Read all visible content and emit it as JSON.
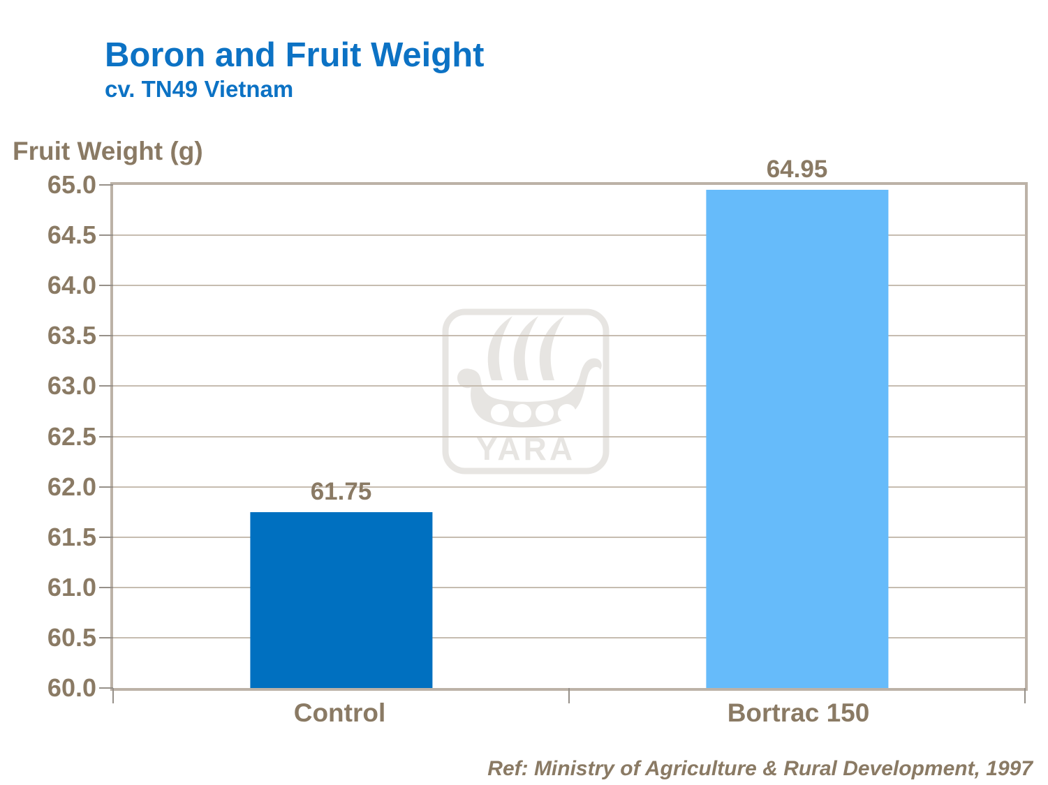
{
  "header": {
    "title": "Boron and Fruit Weight",
    "subtitle": "cv. TN49 Vietnam"
  },
  "axis": {
    "ylabel": "Fruit Weight (g)"
  },
  "footer": {
    "reference": "Ref: Ministry of Agriculture & Rural Development, 1997"
  },
  "watermark": {
    "text": "YARA",
    "icon": "yara-viking-ship-logo"
  },
  "colors": {
    "title_blue": "#0C72C4",
    "text_brown": "#8A7A64",
    "plot_border_tan": "#BCB2A7",
    "gridline_tan": "#C6BCB0",
    "tick_gray": "#969089",
    "bar_control_blue": "#0070C0",
    "bar_bortrac_blue": "#66BBFA",
    "watermark_gray": "#E7E5E2"
  },
  "chart_data": {
    "type": "bar",
    "title": "Boron and Fruit Weight",
    "subtitle": "cv. TN49 Vietnam",
    "xlabel": "",
    "ylabel": "Fruit Weight (g)",
    "categories": [
      "Control",
      "Bortrac 150"
    ],
    "values": [
      61.75,
      64.95
    ],
    "value_labels": [
      "61.75",
      "64.95"
    ],
    "bar_colors": [
      "#0070C0",
      "#66BBFA"
    ],
    "ylim": [
      60.0,
      65.0
    ],
    "yticks": [
      {
        "value": 60.0,
        "label": "60.0"
      },
      {
        "value": 60.5,
        "label": "60.5"
      },
      {
        "value": 61.0,
        "label": "61.0"
      },
      {
        "value": 61.5,
        "label": "61.5"
      },
      {
        "value": 62.0,
        "label": "62.0"
      },
      {
        "value": 62.5,
        "label": "62.5"
      },
      {
        "value": 63.0,
        "label": "63.0"
      },
      {
        "value": 63.5,
        "label": "63.5"
      },
      {
        "value": 64.0,
        "label": "64.0"
      },
      {
        "value": 64.5,
        "label": "64.5"
      },
      {
        "value": 65.0,
        "label": "65.0"
      }
    ],
    "grid": true,
    "legend": false,
    "reference": "Ref: Ministry of Agriculture & Rural Development, 1997"
  }
}
